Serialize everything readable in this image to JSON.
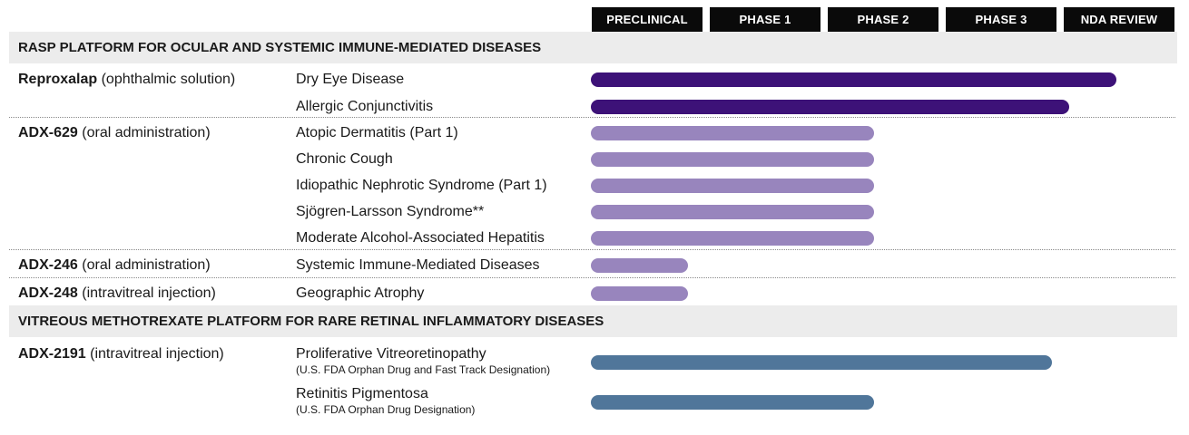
{
  "chart_data": {
    "type": "bar",
    "orientation": "horizontal",
    "title": "",
    "xlabel": "",
    "ylabel": "",
    "phases": [
      "PRECLINICAL",
      "PHASE 1",
      "PHASE 2",
      "PHASE 3",
      "NDA REVIEW"
    ],
    "xlim": [
      0,
      5
    ],
    "colors": {
      "dark": "#3d1278",
      "light": "#9885bd",
      "blue": "#50769a"
    },
    "sections": [
      {
        "title": "RASP PLATFORM FOR OCULAR AND SYSTEMIC IMMUNE-MEDIATED DISEASES",
        "programs": [
          {
            "name": "Reproxalap",
            "route": " (ophthalmic solution)",
            "indications": [
              {
                "name": "Dry Eye Disease",
                "progress": 4.45,
                "color": "dark"
              },
              {
                "name": "Allergic Conjunctivitis",
                "progress": 4.05,
                "color": "dark"
              }
            ]
          },
          {
            "name": "ADX-629",
            "route": " (oral administration)",
            "indications": [
              {
                "name": "Atopic Dermatitis (Part 1)",
                "progress": 2.4,
                "color": "light"
              },
              {
                "name": "Chronic Cough",
                "progress": 2.4,
                "color": "light"
              },
              {
                "name": "Idiopathic Nephrotic Syndrome (Part 1)",
                "progress": 2.4,
                "color": "light"
              },
              {
                "name": "Sjögren-Larsson Syndrome**",
                "progress": 2.4,
                "color": "light"
              },
              {
                "name": "Moderate Alcohol-Associated Hepatitis",
                "progress": 2.4,
                "color": "light"
              }
            ]
          },
          {
            "name": "ADX-246",
            "route": " (oral administration)",
            "indications": [
              {
                "name": "Systemic Immune-Mediated Diseases",
                "progress": 0.82,
                "color": "light"
              }
            ]
          },
          {
            "name": "ADX-248",
            "route": " (intravitreal injection)",
            "indications": [
              {
                "name": "Geographic Atrophy",
                "progress": 0.82,
                "color": "light"
              }
            ]
          }
        ]
      },
      {
        "title": "VITREOUS METHOTREXATE PLATFORM FOR RARE RETINAL INFLAMMATORY DISEASES",
        "programs": [
          {
            "name": "ADX-2191",
            "route": " (intravitreal injection)",
            "indications": [
              {
                "name": "Proliferative Vitreoretinopathy",
                "note": "(U.S. FDA Orphan Drug and Fast Track Designation)",
                "progress": 3.91,
                "color": "blue"
              },
              {
                "name": "Retinitis Pigmentosa",
                "note": "(U.S. FDA Orphan Drug Designation)",
                "progress": 2.4,
                "color": "blue"
              }
            ]
          }
        ]
      }
    ]
  }
}
